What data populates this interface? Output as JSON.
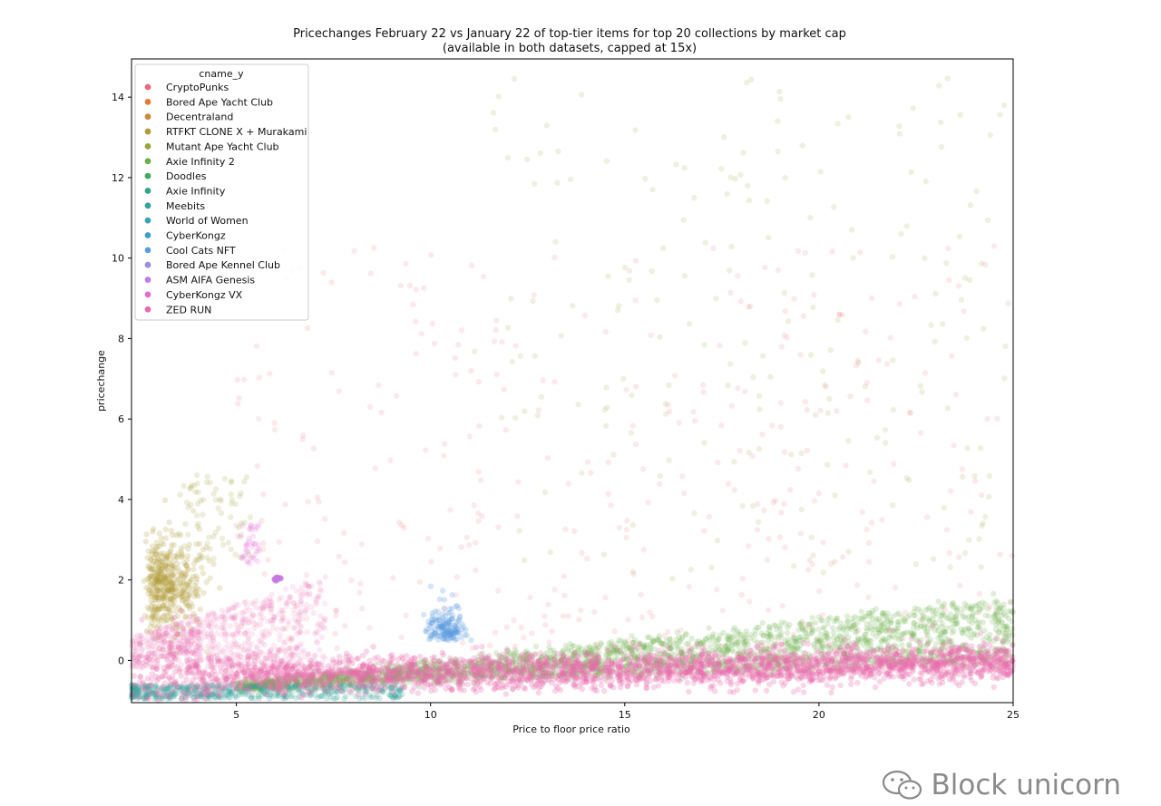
{
  "chart_data": {
    "type": "scatter",
    "title_line1": "Pricechanges February 22 vs January 22 of top-tier items for top 20 collections by market cap",
    "title_line2": "(available in both datasets, capped at 15x)",
    "xlabel": "Price to floor price ratio",
    "ylabel": "pricechange",
    "xlim": [
      2.3,
      25
    ],
    "ylim": [
      -1.05,
      14.95
    ],
    "xticks": [
      5,
      10,
      15,
      20,
      25
    ],
    "yticks": [
      0,
      2,
      4,
      6,
      8,
      10,
      12,
      14
    ],
    "grid": false,
    "legend_title": "cname_y",
    "legend_position": "upper-left",
    "series": [
      {
        "name": "CryptoPunks",
        "color": "#e8697a"
      },
      {
        "name": "Bored Ape Yacht Club",
        "color": "#e2793a"
      },
      {
        "name": "Decentraland",
        "color": "#c98a3d"
      },
      {
        "name": "RTFKT CLONE X + Murakami",
        "color": "#b09a38"
      },
      {
        "name": "Mutant Ape Yacht Club",
        "color": "#9ba339"
      },
      {
        "name": "Axie Infinity 2",
        "color": "#6aae46"
      },
      {
        "name": "Doodles",
        "color": "#3daa5f"
      },
      {
        "name": "Axie Infinity",
        "color": "#35a687"
      },
      {
        "name": "Meebits",
        "color": "#37a39c"
      },
      {
        "name": "World of Women",
        "color": "#3aa2b2"
      },
      {
        "name": "CyberKongz",
        "color": "#3f9fca"
      },
      {
        "name": "Cool Cats NFT",
        "color": "#5b9bdf"
      },
      {
        "name": "Bored Ape Kennel Club",
        "color": "#9a8de0"
      },
      {
        "name": "ASM AIFA Genesis",
        "color": "#c57be0"
      },
      {
        "name": "CyberKongz VX",
        "color": "#e26bd2"
      },
      {
        "name": "ZED RUN",
        "color": "#ea6aae"
      }
    ]
  },
  "watermark": {
    "text": "Block unicorn"
  }
}
